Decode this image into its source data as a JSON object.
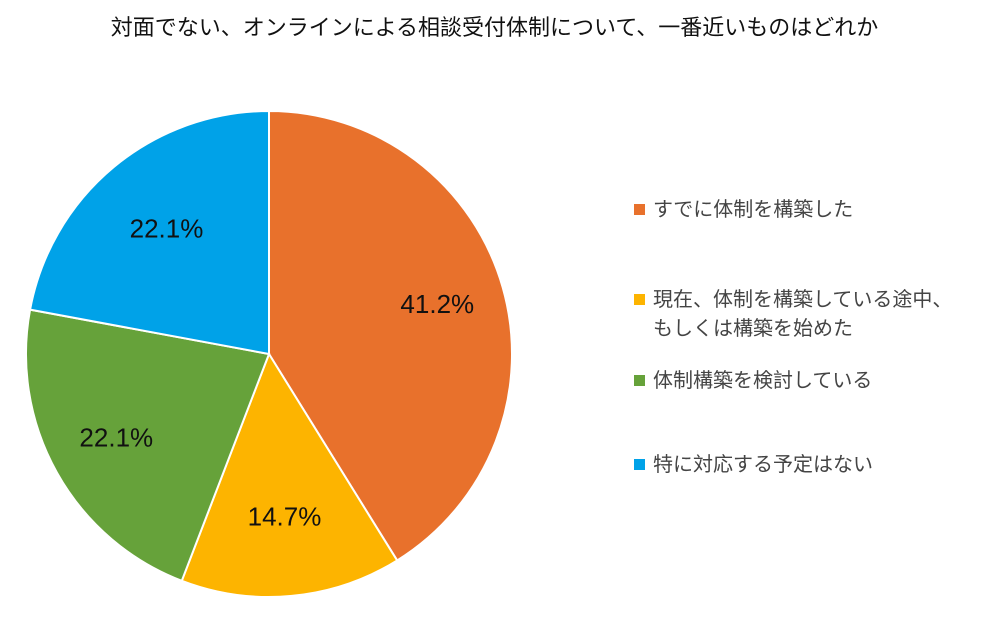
{
  "chart_data": {
    "type": "pie",
    "title": "対面でない、オンラインによる相談受付体制について、一番近いものはどれか",
    "categories": [
      "すでに体制を構築した",
      "現在、体制を構築している途中、\nもしくは構築を始めた",
      "体制構築を検討している",
      "特に対応する予定はない"
    ],
    "values": [
      41.2,
      14.7,
      22.1,
      22.1
    ],
    "data_labels": [
      "41.2%",
      "14.7%",
      "22.1%",
      "22.1%"
    ],
    "colors": [
      "#E8712C",
      "#FDB400",
      "#66A23A",
      "#00A2E8"
    ],
    "start_angle": "12 o'clock",
    "direction": "clockwise",
    "legend_position": "right"
  }
}
